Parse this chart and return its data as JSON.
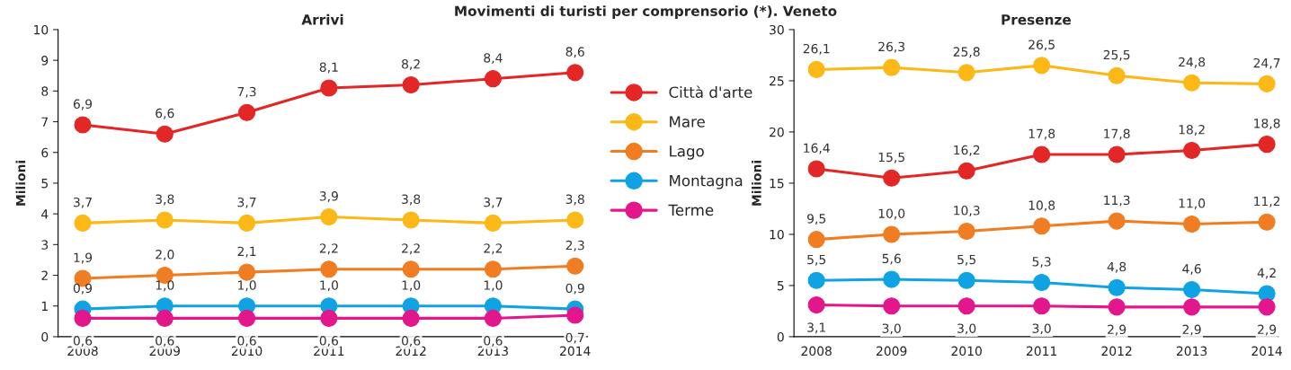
{
  "chart_data": [
    {
      "type": "line",
      "title": "Arrivi",
      "ylabel": "Milioni",
      "annotations": [
        "Movimenti di turisti per comprensorio (*). Veneto"
      ],
      "categories": [
        "2008",
        "2009",
        "2010",
        "2011",
        "2012",
        "2013",
        "2014"
      ],
      "ylim": [
        0,
        10
      ],
      "yticks": [
        0,
        1,
        2,
        3,
        4,
        5,
        6,
        7,
        8,
        9,
        10
      ],
      "marker": "circle",
      "line_style": "solid",
      "legend": "right",
      "grid": false,
      "series": [
        {
          "name": "Città d'arte",
          "color": "#e32626",
          "values": [
            6.9,
            6.6,
            7.3,
            8.1,
            8.2,
            8.4,
            8.6
          ],
          "value_labels": [
            "6,9",
            "6,6",
            "7,3",
            "8,1",
            "8,2",
            "8,4",
            "8,6"
          ]
        },
        {
          "name": "Mare",
          "color": "#fbb817",
          "values": [
            3.7,
            3.8,
            3.7,
            3.9,
            3.8,
            3.7,
            3.8
          ],
          "value_labels": [
            "3,7",
            "3,8",
            "3,7",
            "3,9",
            "3,8",
            "3,7",
            "3,8"
          ]
        },
        {
          "name": "Lago",
          "color": "#f07d22",
          "values": [
            1.9,
            2.0,
            2.1,
            2.2,
            2.2,
            2.2,
            2.3
          ],
          "value_labels": [
            "1,9",
            "2,0",
            "2,1",
            "2,2",
            "2,2",
            "2,2",
            "2,3"
          ]
        },
        {
          "name": "Montagna",
          "color": "#10a3e3",
          "values": [
            0.9,
            1.0,
            1.0,
            1.0,
            1.0,
            1.0,
            0.9
          ],
          "value_labels": [
            "0,9",
            "1,0",
            "1,0",
            "1,0",
            "1,0",
            "1,0",
            "0,9"
          ]
        },
        {
          "name": "Terme",
          "color": "#e3168b",
          "values": [
            0.6,
            0.6,
            0.6,
            0.6,
            0.6,
            0.6,
            0.7
          ],
          "value_labels": [
            "0,6",
            "0,6",
            "0,6",
            "0,6",
            "0,6",
            "0,6",
            "0,7"
          ]
        }
      ]
    },
    {
      "type": "line",
      "title": "Presenze",
      "ylabel": "Milioni",
      "categories": [
        "2008",
        "2009",
        "2010",
        "2011",
        "2012",
        "2013",
        "2014"
      ],
      "ylim": [
        0,
        30
      ],
      "yticks": [
        0,
        5,
        10,
        15,
        20,
        25,
        30
      ],
      "marker": "circle",
      "line_style": "solid",
      "legend": false,
      "grid": false,
      "series": [
        {
          "color": "#e32626",
          "values": [
            16.4,
            15.5,
            16.2,
            17.8,
            17.8,
            18.2,
            18.8
          ],
          "value_labels": [
            "16,4",
            "15,5",
            "16,2",
            "17,8",
            "17,8",
            "18,2",
            "18,8"
          ]
        },
        {
          "color": "#fbb817",
          "values": [
            26.1,
            26.3,
            25.8,
            26.5,
            25.5,
            24.8,
            24.7
          ],
          "value_labels": [
            "26,1",
            "26,3",
            "25,8",
            "26,5",
            "25,5",
            "24,8",
            "24,7"
          ]
        },
        {
          "color": "#f07d22",
          "values": [
            9.5,
            10.0,
            10.3,
            10.8,
            11.3,
            11.0,
            11.2
          ],
          "value_labels": [
            "9,5",
            "10,0",
            "10,3",
            "10,8",
            "11,3",
            "11,0",
            "11,2"
          ]
        },
        {
          "color": "#10a3e3",
          "values": [
            5.5,
            5.6,
            5.5,
            5.3,
            4.8,
            4.6,
            4.2
          ],
          "value_labels": [
            "5,5",
            "5,6",
            "5,5",
            "5,3",
            "4,8",
            "4,6",
            "4,2"
          ]
        },
        {
          "color": "#e3168b",
          "values": [
            3.1,
            3.0,
            3.0,
            3.0,
            2.9,
            2.9,
            2.9
          ],
          "value_labels": [
            "3,1",
            "3,0",
            "3,0",
            "3,0",
            "2,9",
            "2,9",
            "2,9"
          ]
        }
      ]
    }
  ]
}
